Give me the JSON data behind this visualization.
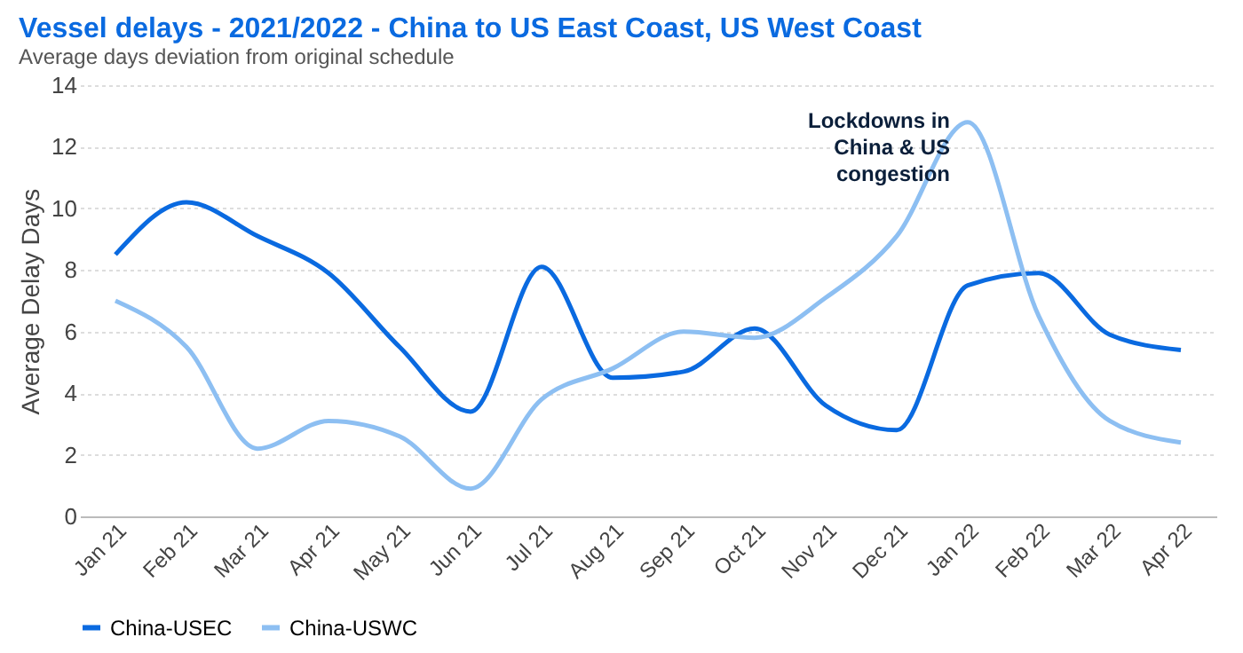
{
  "chart_data": {
    "type": "line",
    "title": "Vessel delays - 2021/2022 - China to US East Coast, US West Coast",
    "subtitle": "Average days deviation from original schedule",
    "ylabel": "Average Delay Days",
    "categories": [
      "Jan 21",
      "Feb 21",
      "Mar 21",
      "Apr 21",
      "May 21",
      "Jun 21",
      "Jul 21",
      "Aug 21",
      "Sep 21",
      "Oct 21",
      "Nov 21",
      "Dec 21",
      "Jan 22",
      "Feb 22",
      "Mar 22",
      "Apr 22"
    ],
    "series": [
      {
        "name": "China-USEC",
        "color": "#0a6ae0",
        "values": [
          8.5,
          10.2,
          9.1,
          7.9,
          5.5,
          3.4,
          8.1,
          4.5,
          4.7,
          6.1,
          3.6,
          2.8,
          7.5,
          7.9,
          5.9,
          5.4
        ]
      },
      {
        "name": "China-USWC",
        "color": "#8dbff2",
        "values": [
          7.0,
          5.5,
          2.2,
          3.1,
          2.6,
          0.9,
          3.8,
          4.8,
          6.0,
          5.8,
          7.1,
          9.1,
          12.8,
          6.5,
          3.1,
          2.4
        ]
      }
    ],
    "ylim": [
      0,
      14
    ],
    "yticks": [
      0,
      2,
      4,
      6,
      8,
      10,
      12,
      14
    ],
    "grid": "y",
    "legend": "bottom",
    "marker": "none",
    "line_style": "solid",
    "annotations": [
      {
        "text": "Lockdowns in China & US congestion",
        "x": "Jan 22",
        "y": 12.8
      }
    ]
  }
}
